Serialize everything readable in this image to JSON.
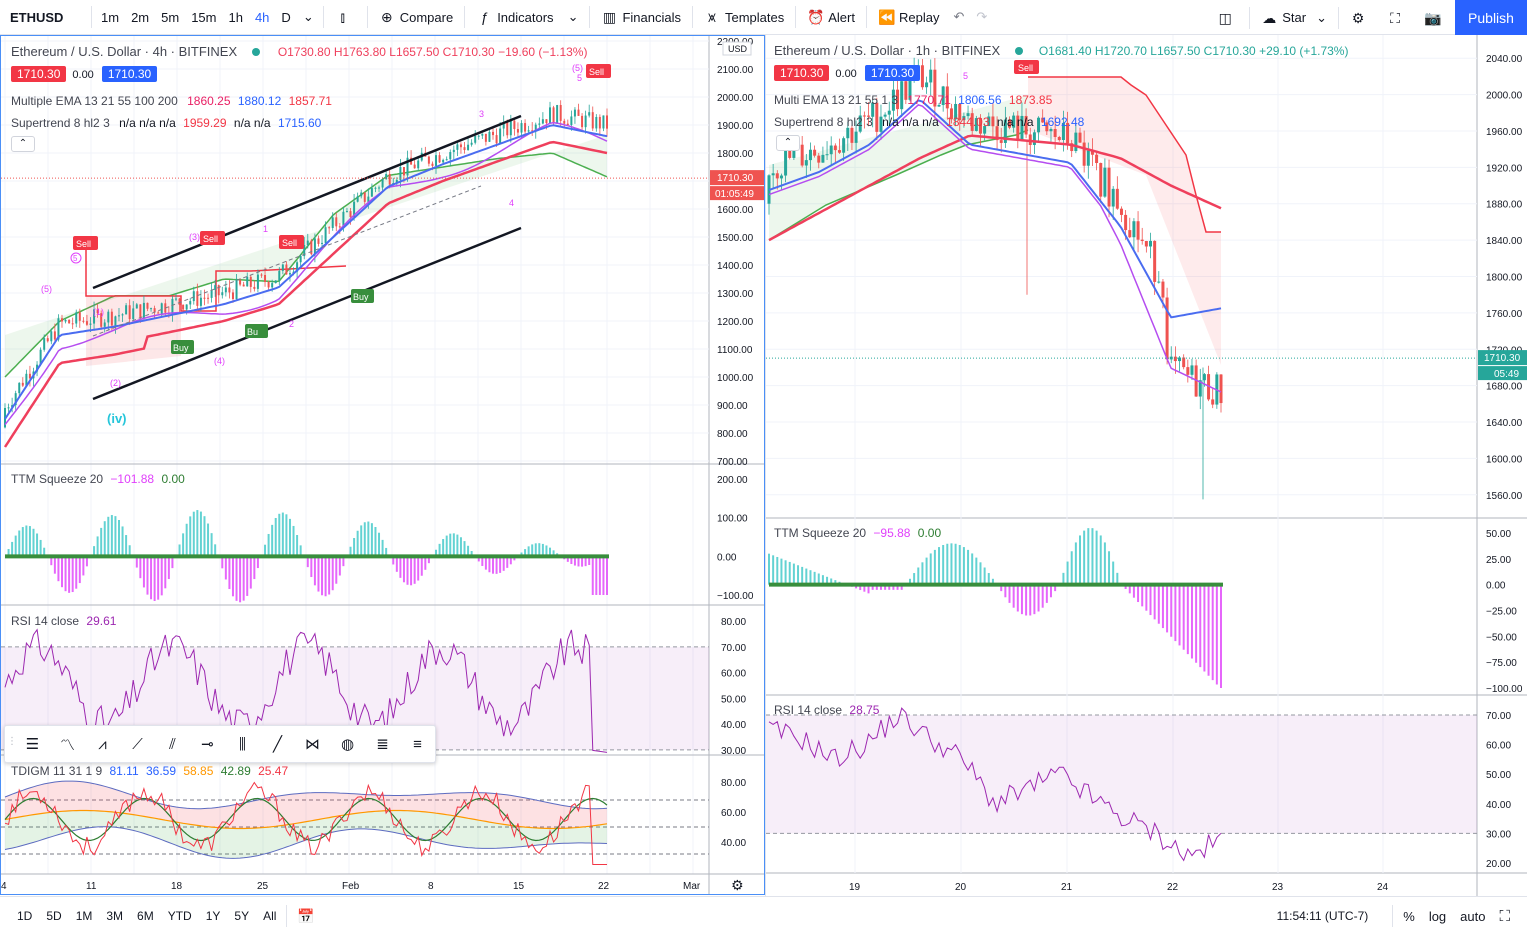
{
  "toolbar": {
    "symbol": "ETHUSD",
    "timeframes": [
      "1m",
      "2m",
      "5m",
      "15m",
      "1h",
      "4h",
      "D"
    ],
    "active_timeframe": "4h",
    "compare": "Compare",
    "indicators": "Indicators",
    "financials": "Financials",
    "templates": "Templates",
    "alert": "Alert",
    "replay": "Replay",
    "star": "Star",
    "publish": "Publish"
  },
  "left_chart": {
    "title": "Ethereum / U.S. Dollar · 4h · BITFINEX",
    "ohlc": {
      "o": "O1730.80",
      "h": "H1763.80",
      "l": "L1657.50",
      "c": "C1710.30",
      "chg": "−19.60 (−1.13%)"
    },
    "bid": "1710.30",
    "spread": "0.00",
    "ask": "1710.30",
    "ema_label": "Multiple EMA 13 21 55 100 200",
    "ema_vals": [
      "1860.25",
      "1880.12",
      "1857.71"
    ],
    "st_label": "Supertrend 8 hl2 3",
    "st_vals": "n/a n/a n/a",
    "st_v1": "1959.29",
    "st_na2": "n/a n/a",
    "st_v2": "1715.60",
    "price_label": "1710.30",
    "countdown": "01:05:49",
    "currency": "USD",
    "y_ticks": [
      "2200.00",
      "2100.00",
      "2000.00",
      "1900.00",
      "1800.00",
      "1700.00",
      "1600.00",
      "1500.00",
      "1400.00",
      "1300.00",
      "1200.00",
      "1100.00",
      "1000.00",
      "900.00",
      "800.00",
      "700.00"
    ],
    "x_ticks": [
      "4",
      "11",
      "18",
      "25",
      "Feb",
      "8",
      "15",
      "22",
      "Mar"
    ],
    "wave_labels": {
      "w5a": "(5)",
      "w1": "(1)",
      "w2": "(2)",
      "w3": "(3)",
      "w4": "(4)",
      "w5b": "(5)",
      "iv": "(iv)",
      "s1": "1",
      "s2": "2",
      "s3": "3",
      "s4": "4",
      "s5": "5"
    },
    "signals": {
      "sell": "Sell",
      "buy": "Buy",
      "buy_trunc": "Bu"
    },
    "ttm_label": "TTM Squeeze 20",
    "ttm_v1": "−101.88",
    "ttm_v2": "0.00",
    "ttm_ticks": [
      "200.00",
      "100.00",
      "0.00",
      "−100.00"
    ],
    "rsi_label": "RSI 14 close",
    "rsi_val": "29.61",
    "rsi_ticks": [
      "80.00",
      "70.00",
      "60.00",
      "50.00",
      "40.00",
      "30.00"
    ],
    "tdi_label": "TDIGM 11 31 1 9",
    "tdi_vals": [
      "81.11",
      "36.59",
      "58.85",
      "42.89",
      "25.47"
    ],
    "tdi_ticks": [
      "80.00",
      "60.00",
      "40.00"
    ]
  },
  "right_chart": {
    "title": "Ethereum / U.S. Dollar · 1h · BITFINEX",
    "ohlc": {
      "o": "O1681.40",
      "h": "H1720.70",
      "l": "L1657.50",
      "c": "C1710.30",
      "chg": "+29.10 (+1.73%)"
    },
    "bid": "1710.30",
    "spread": "0.00",
    "ask": "1710.30",
    "ema_label": "Multi EMA 13 21 55 1 3",
    "ema_vals": [
      "1770.71",
      "1806.56",
      "1873.85"
    ],
    "st_label": "Supertrend 8 hl2 3",
    "st_vals": "n/a n/a n/a",
    "st_v1": "1844.03",
    "st_na2": "n/a n/a",
    "st_v2": "1692.48",
    "price_label": "1710.30",
    "countdown": "05:49",
    "sell_label": "Sell",
    "wave_label": "5",
    "y_ticks": [
      "2040.00",
      "2000.00",
      "1960.00",
      "1920.00",
      "1880.00",
      "1840.00",
      "1800.00",
      "1760.00",
      "1720.00",
      "1680.00",
      "1640.00",
      "1600.00",
      "1560.00"
    ],
    "x_ticks": [
      "19",
      "20",
      "21",
      "22",
      "23",
      "24"
    ],
    "ttm_label": "TTM Squeeze 20",
    "ttm_v1": "−95.88",
    "ttm_v2": "0.00",
    "ttm_ticks": [
      "50.00",
      "25.00",
      "0.00",
      "−25.00",
      "−50.00",
      "−75.00",
      "−100.00"
    ],
    "rsi_label": "RSI 14 close",
    "rsi_val": "28.75",
    "rsi_ticks": [
      "70.00",
      "60.00",
      "50.00",
      "40.00",
      "30.00",
      "20.00"
    ]
  },
  "bottombar": {
    "ranges": [
      "1D",
      "5D",
      "1M",
      "3M",
      "6M",
      "YTD",
      "1Y",
      "5Y",
      "All"
    ],
    "time": "11:54:11 (UTC-7)",
    "pct": "%",
    "log": "log",
    "auto": "auto"
  },
  "colors": {
    "accent": "#2962ff",
    "sell": "#f23645",
    "buy": "#26a69a",
    "ema_red": "#ef3f5c",
    "ema_blue": "#4a6cf0",
    "rsi": "#9c27b0",
    "squeeze_pos": "#3cc7c7",
    "squeeze_neg": "#e040fb"
  },
  "chart_data": [
    {
      "type": "line",
      "title": "Ethereum / U.S. Dollar · 4h · BITFINEX",
      "ylim": [
        700,
        2200
      ],
      "x_ticks": [
        "4",
        "11",
        "18",
        "25",
        "Feb",
        "8",
        "15",
        "22",
        "Mar"
      ],
      "series": [
        {
          "name": "Multiple EMA 13 21 55 100 200",
          "values": [
            850,
            1150,
            1180,
            1220,
            1260,
            1320,
            1500,
            1680,
            1760,
            1830,
            1900,
            1860
          ]
        },
        {
          "name": "Supertrend 8 hl2 3",
          "values": [
            1000,
            1200,
            1290,
            1290,
            1350,
            1340,
            1580,
            1720,
            1750,
            1780,
            1800,
            1715
          ]
        }
      ],
      "last_price": 1710.3
    },
    {
      "type": "line",
      "title": "Ethereum / U.S. Dollar · 1h · BITFINEX",
      "ylim": [
        1540,
        2060
      ],
      "x_ticks": [
        "19",
        "20",
        "21",
        "22",
        "23",
        "24"
      ],
      "series": [
        {
          "name": "Multi EMA 13 21 55 1 3",
          "values": [
            1900,
            1920,
            1950,
            2000,
            1950,
            1940,
            1930,
            1860,
            1760,
            1770
          ]
        },
        {
          "name": "Supertrend 8 hl2 3",
          "values": [
            1840,
            1870,
            1890,
            1900,
            2010,
            2010,
            1940,
            1920,
            1844,
            1844
          ]
        }
      ],
      "last_price": 1710.3
    }
  ]
}
